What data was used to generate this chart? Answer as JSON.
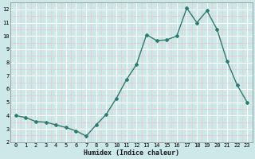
{
  "x": [
    0,
    1,
    2,
    3,
    4,
    5,
    6,
    7,
    8,
    9,
    10,
    11,
    12,
    13,
    14,
    15,
    16,
    17,
    18,
    19,
    20,
    21,
    22,
    23
  ],
  "y": [
    4.0,
    3.85,
    3.55,
    3.5,
    3.3,
    3.1,
    2.85,
    2.45,
    3.3,
    4.1,
    5.3,
    6.7,
    7.85,
    10.1,
    9.65,
    9.7,
    10.0,
    12.1,
    11.0,
    11.9,
    10.5,
    8.1,
    6.3,
    5.0
  ],
  "xlabel": "Humidex (Indice chaleur)",
  "line_color": "#2d7a6e",
  "bg_color": "#cde8e8",
  "major_grid_color": "#e8c8c8",
  "minor_grid_color": "#ffffff",
  "xlim": [
    -0.5,
    23.5
  ],
  "ylim": [
    2,
    12.5
  ],
  "yticks": [
    2,
    3,
    4,
    5,
    6,
    7,
    8,
    9,
    10,
    11,
    12
  ],
  "xticks": [
    0,
    1,
    2,
    3,
    4,
    5,
    6,
    7,
    8,
    9,
    10,
    11,
    12,
    13,
    14,
    15,
    16,
    17,
    18,
    19,
    20,
    21,
    22,
    23
  ],
  "marker": "D",
  "marker_size": 2.0,
  "line_width": 1.0,
  "xlabel_fontsize": 6.0,
  "tick_fontsize": 5.0
}
